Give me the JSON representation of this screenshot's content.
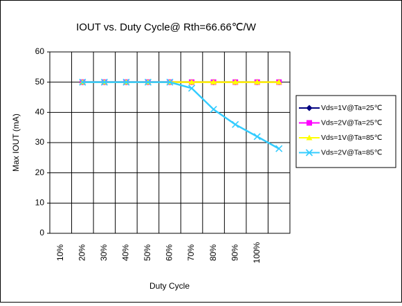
{
  "chart_data": {
    "type": "line",
    "title": "IOUT vs. Duty Cycle@ Rth=66.66℃/W",
    "x_label": "Duty Cycle",
    "y_label": "Max IOUT (mA)",
    "categories": [
      "10%",
      "20%",
      "30%",
      "40%",
      "50%",
      "60%",
      "70%",
      "80%",
      "90%",
      "100%",
      null
    ],
    "series": [
      {
        "name": "Vds=1V@Ta=25℃",
        "color": "#000080",
        "marker": "diamond",
        "values": [
          null,
          50,
          50,
          50,
          50,
          50,
          50,
          50,
          50,
          50,
          50
        ]
      },
      {
        "name": "Vds=2V@Ta=25℃",
        "color": "#ff00ff",
        "marker": "square",
        "values": [
          null,
          50,
          50,
          50,
          50,
          50,
          50,
          50,
          50,
          50,
          50
        ]
      },
      {
        "name": "Vds=1V@Ta=85℃",
        "color": "#ffff00",
        "marker": "triangle",
        "values": [
          null,
          50,
          50,
          50,
          50,
          50,
          50,
          50,
          50,
          50,
          50
        ]
      },
      {
        "name": "Vds=2V@Ta=85℃",
        "color": "#33ccff",
        "marker": "x",
        "values": [
          null,
          50,
          50,
          50,
          50,
          50,
          48,
          41,
          36,
          32,
          28
        ]
      }
    ],
    "ylim": [
      0,
      60
    ],
    "yticks": [
      0,
      10,
      20,
      30,
      40,
      50,
      60
    ],
    "grid": true,
    "legend": "right"
  }
}
